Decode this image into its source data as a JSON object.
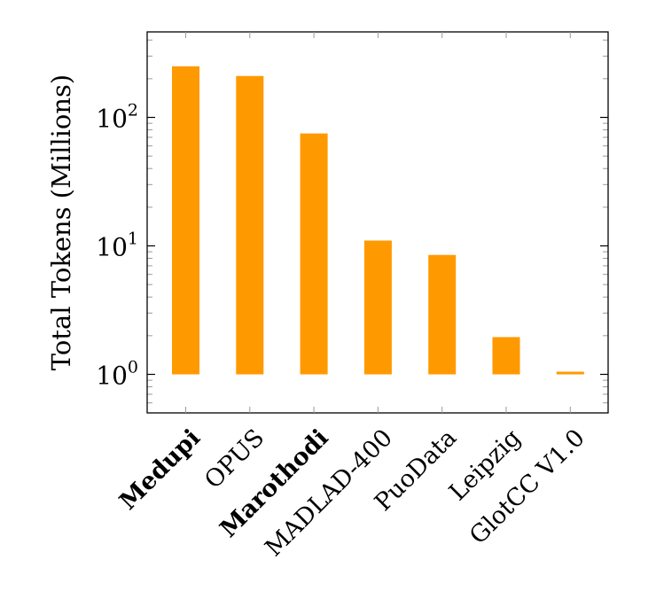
{
  "chart_data": {
    "type": "bar",
    "title": "",
    "xlabel": "",
    "ylabel": "Total Tokens (Millions)",
    "y_scale": "log",
    "ylim": [
      0.5,
      500
    ],
    "y_ticks": [
      {
        "base": "10",
        "exp": "0"
      },
      {
        "base": "10",
        "exp": "1"
      },
      {
        "base": "10",
        "exp": "2"
      }
    ],
    "categories": [
      "Medupi",
      "OPUS",
      "Marothodi",
      "MADLAD-400",
      "PuoData",
      "Leipzig",
      "GlotCC V1.0"
    ],
    "emphasized_categories": [
      "Medupi",
      "Marothodi"
    ],
    "values": [
      250,
      210,
      75,
      11,
      8.5,
      1.95,
      1.0
    ],
    "bar_base": 1,
    "bar_color": "#FF9900",
    "grid": false
  }
}
